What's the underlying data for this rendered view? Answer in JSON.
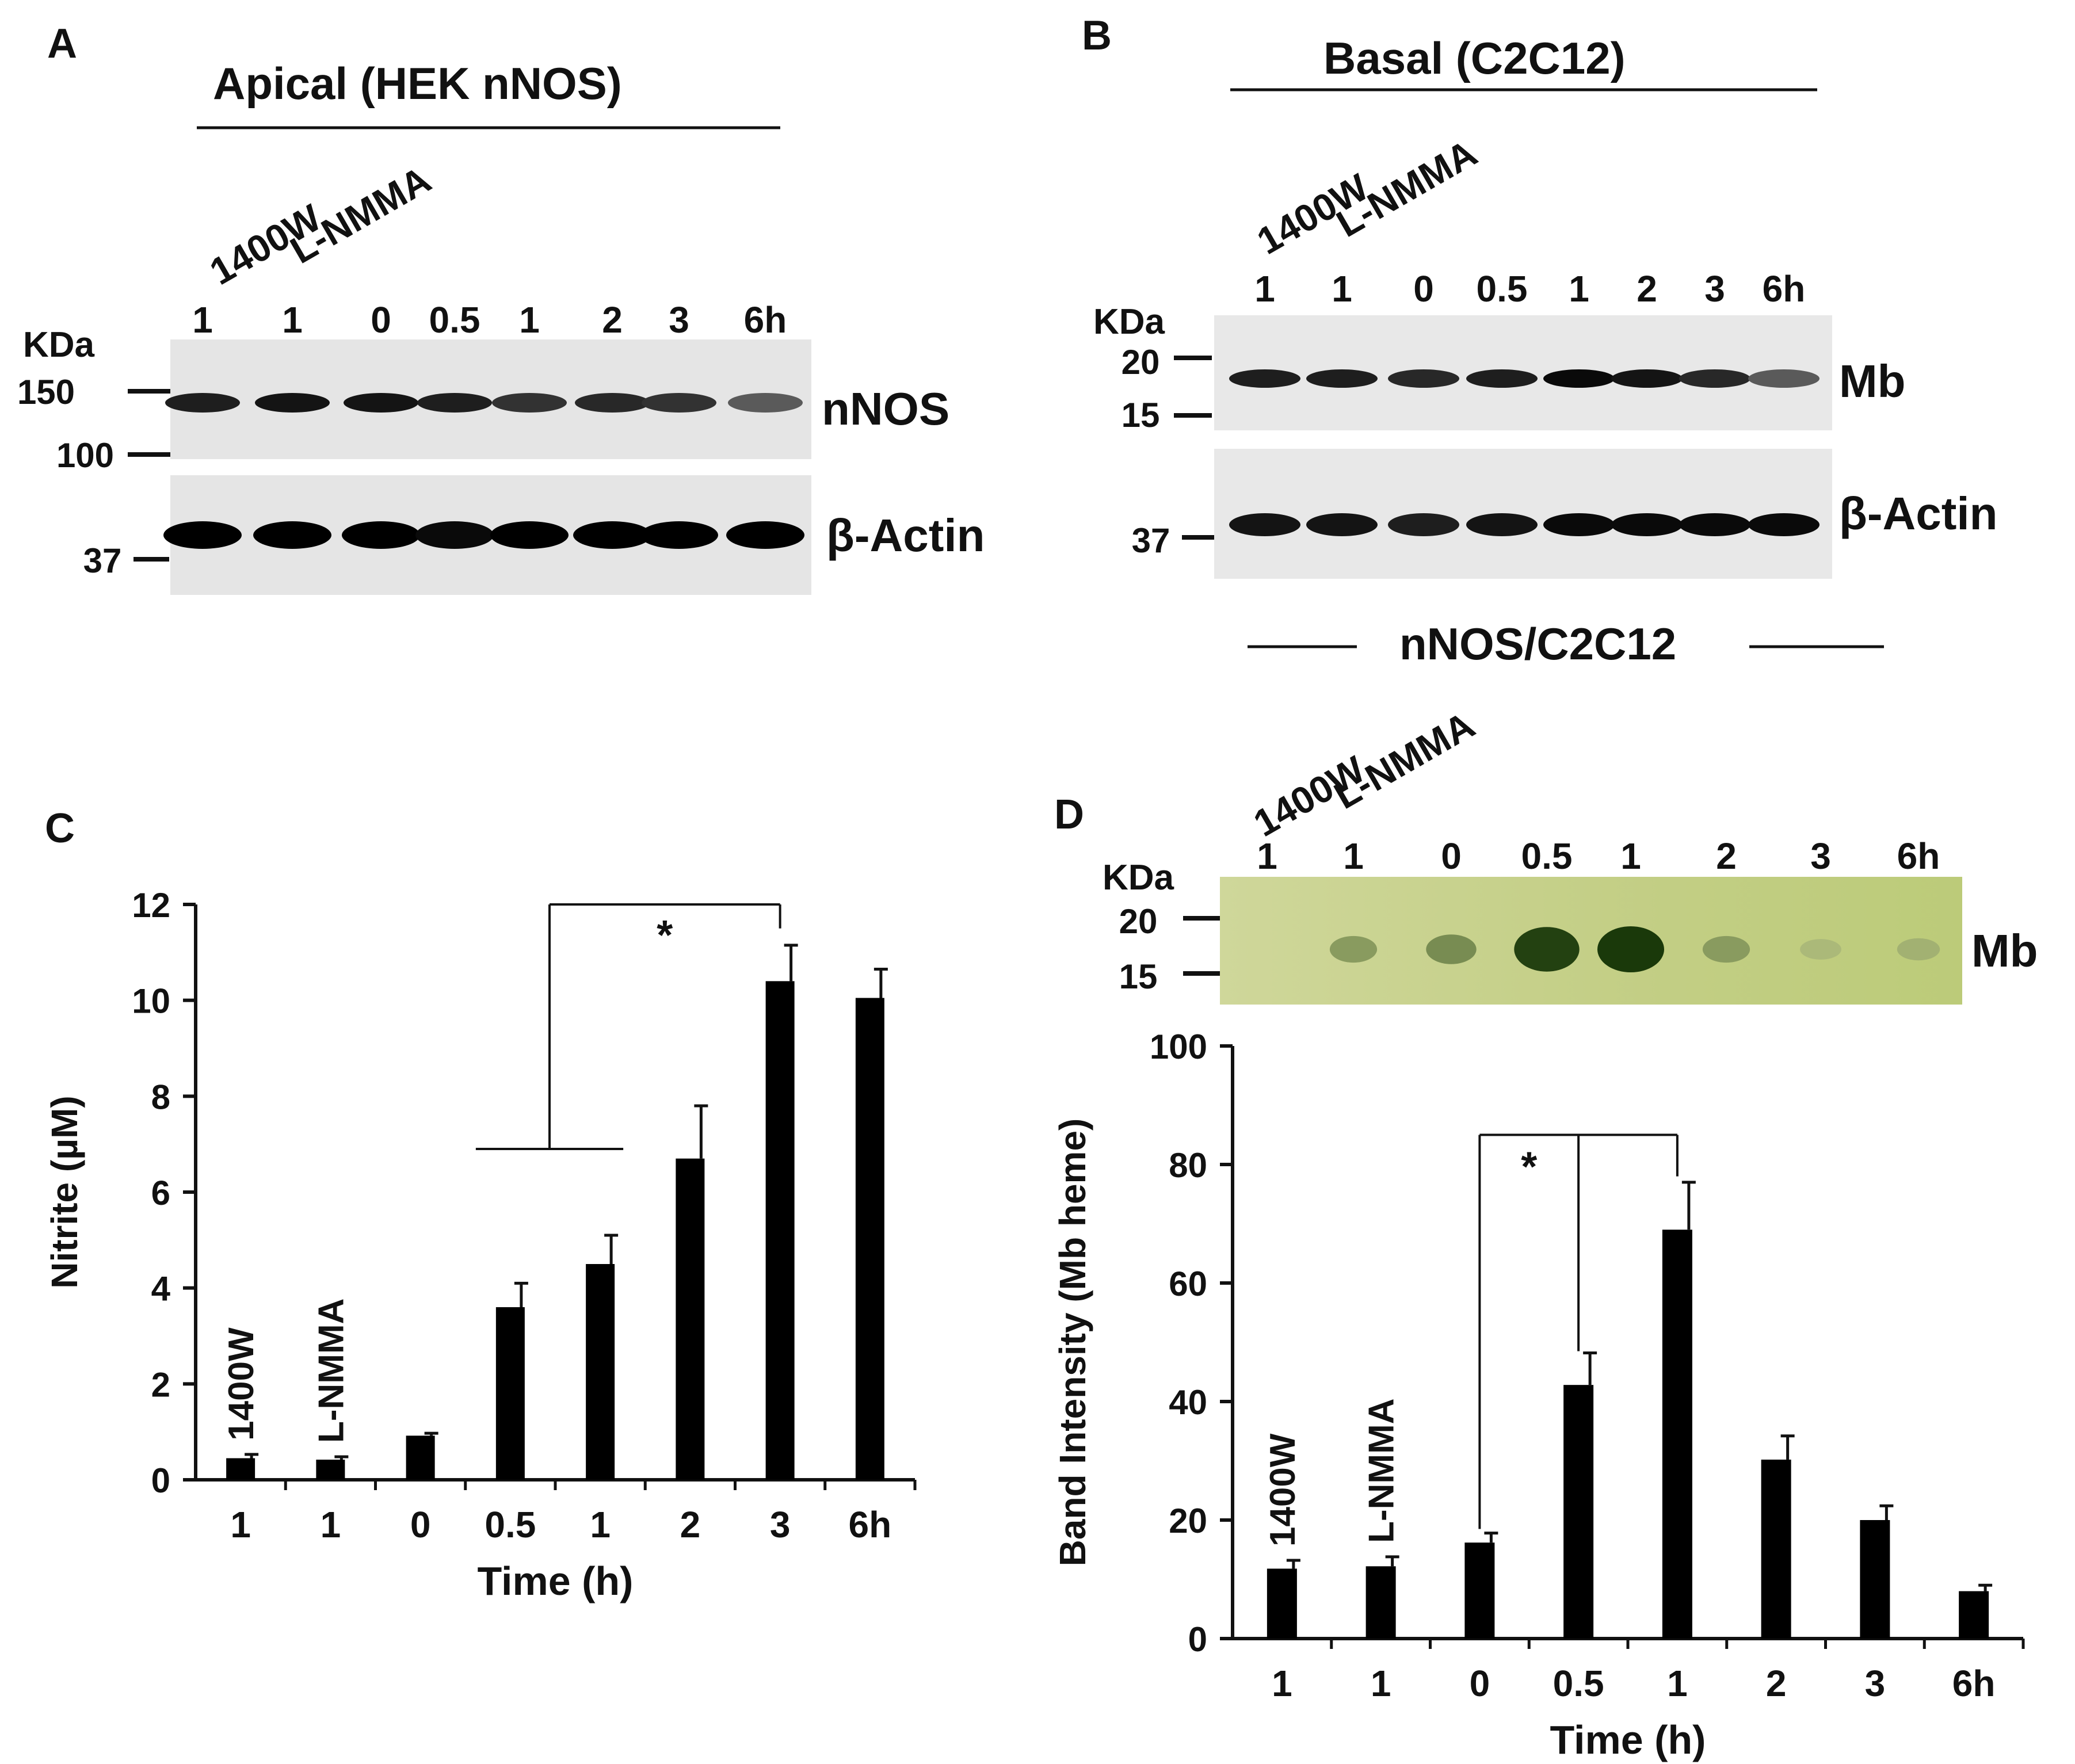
{
  "panels": {
    "A": {
      "letter": "A",
      "header": "Apical (HEK nNOS)",
      "inhibitor_labels": [
        "1400W",
        "L-NMMA"
      ],
      "lanes": [
        "1",
        "1",
        "0",
        "0.5",
        "1",
        "2",
        "3",
        "6h"
      ],
      "kda_label": "KDa",
      "markers": [
        "150",
        "100",
        "37"
      ],
      "band_labels": [
        "nNOS",
        "β-Actin"
      ],
      "band_intensity": {
        "nNOS": [
          0.85,
          0.9,
          0.9,
          0.85,
          0.75,
          0.8,
          0.75,
          0.55
        ],
        "β-Actin": [
          1.0,
          1.0,
          1.0,
          0.95,
          1.0,
          1.0,
          1.0,
          1.0
        ]
      }
    },
    "B": {
      "letter": "B",
      "header": "Basal (C2C12)",
      "inhibitor_labels": [
        "1400W",
        "L-NMMA"
      ],
      "lanes": [
        "1",
        "1",
        "0",
        "0.5",
        "1",
        "2",
        "3",
        "6h"
      ],
      "kda_label": "KDa",
      "markers": [
        "20",
        "15",
        "37"
      ],
      "band_labels": [
        "Mb",
        "β-Actin"
      ],
      "band_intensity": {
        "Mb": [
          0.85,
          0.85,
          0.8,
          0.85,
          0.95,
          0.9,
          0.8,
          0.55
        ],
        "β-Actin": [
          0.9,
          0.9,
          0.85,
          0.9,
          0.95,
          0.95,
          0.95,
          0.95
        ]
      }
    },
    "C": {
      "letter": "C",
      "inhibitor_labels": [
        "1400W",
        "L-NMMA"
      ],
      "significance": "*"
    },
    "D": {
      "letter": "D",
      "header": "nNOS/C2C12",
      "inhibitor_labels": [
        "1400W",
        "L-NMMA"
      ],
      "lanes": [
        "1",
        "1",
        "0",
        "0.5",
        "1",
        "2",
        "3",
        "6h"
      ],
      "kda_label": "KDa",
      "markers": [
        "20",
        "15"
      ],
      "band_label": "Mb",
      "band_intensity": [
        0.0,
        0.35,
        0.45,
        0.95,
        1.0,
        0.35,
        0.15,
        0.2
      ],
      "significance": "*"
    }
  },
  "chart_data": [
    {
      "type": "bar",
      "panel": "C",
      "categories": [
        "1",
        "1",
        "0",
        "0.5",
        "1",
        "2",
        "3",
        "6h"
      ],
      "values": [
        0.45,
        0.42,
        0.92,
        3.6,
        4.5,
        6.7,
        10.4,
        10.05
      ],
      "errors": [
        0.08,
        0.06,
        0.05,
        0.5,
        0.6,
        1.1,
        0.75,
        0.6
      ],
      "xlabel": "Time (h)",
      "ylabel": "Nitrite (µM)",
      "ylim": [
        0,
        12
      ],
      "yticks": [
        "0",
        "2",
        "4",
        "6",
        "8",
        "10",
        "12"
      ],
      "grid": false,
      "bar_color": "#000000"
    },
    {
      "type": "bar",
      "panel": "D",
      "categories": [
        "1",
        "1",
        "0",
        "0.5",
        "1",
        "2",
        "3",
        "6h"
      ],
      "values": [
        11.8,
        12.2,
        16.2,
        42.8,
        69.0,
        30.2,
        20.0,
        8.0
      ],
      "errors": [
        1.4,
        1.6,
        1.6,
        5.4,
        8.0,
        4.0,
        2.4,
        1.0
      ],
      "xlabel": "Time (h)",
      "ylabel": "Band Intensity (Mb heme)",
      "ylim": [
        0,
        100
      ],
      "yticks": [
        "0",
        "20",
        "40",
        "60",
        "80",
        "100"
      ],
      "grid": false,
      "bar_color": "#000000"
    }
  ]
}
